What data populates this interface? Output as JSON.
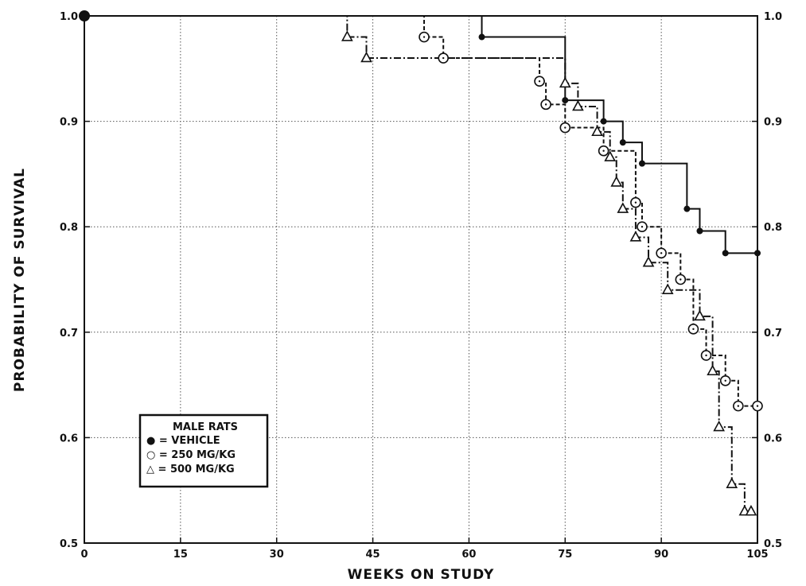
{
  "chart_data": {
    "type": "line",
    "title": "",
    "xlabel": "WEEKS ON STUDY",
    "ylabel": "PROBABILITY OF SURVIVAL",
    "xlim": [
      0,
      105
    ],
    "ylim": [
      0.5,
      1.0
    ],
    "xticks": [
      "0",
      "15",
      "30",
      "45",
      "60",
      "75",
      "90",
      "105"
    ],
    "yticks_left": [
      "0.5",
      "0.6",
      "0.7",
      "0.8",
      "0.9",
      "1.0"
    ],
    "yticks_right": [
      "0.5",
      "0.6",
      "0.7",
      "0.8",
      "0.9",
      "1.0"
    ],
    "grid": true,
    "legend_position": "bottom-left",
    "legend_title": "MALE RATS",
    "series": [
      {
        "name": "VEHICLE",
        "legend_label": "● = VEHICLE",
        "marker": "filled-circle",
        "line_style": "solid",
        "x": [
          0,
          62,
          75,
          81,
          84,
          87,
          94,
          96,
          100,
          105
        ],
        "y": [
          1.0,
          0.98,
          0.92,
          0.9,
          0.88,
          0.86,
          0.817,
          0.796,
          0.775,
          0.775
        ]
      },
      {
        "name": "250 MG/KG",
        "legend_label": "○ = 250 MG/KG",
        "marker": "open-circle",
        "line_style": "dashed",
        "x": [
          0,
          53,
          56,
          71,
          72,
          75,
          81,
          86,
          87,
          90,
          93,
          95,
          97,
          100,
          102,
          105
        ],
        "y": [
          1.0,
          0.98,
          0.96,
          0.938,
          0.916,
          0.894,
          0.872,
          0.823,
          0.8,
          0.775,
          0.75,
          0.703,
          0.678,
          0.654,
          0.63,
          0.63
        ]
      },
      {
        "name": "500 MG/KG",
        "legend_label": "△ = 500 MG/KG",
        "marker": "open-triangle",
        "line_style": "dash-dot",
        "x": [
          0,
          41,
          44,
          75,
          77,
          80,
          82,
          83,
          84,
          86,
          88,
          91,
          96,
          98,
          99,
          101,
          103,
          104
        ],
        "y": [
          1.0,
          0.98,
          0.96,
          0.936,
          0.914,
          0.89,
          0.866,
          0.842,
          0.817,
          0.79,
          0.766,
          0.74,
          0.715,
          0.663,
          0.61,
          0.556,
          0.53,
          0.53
        ]
      }
    ]
  }
}
